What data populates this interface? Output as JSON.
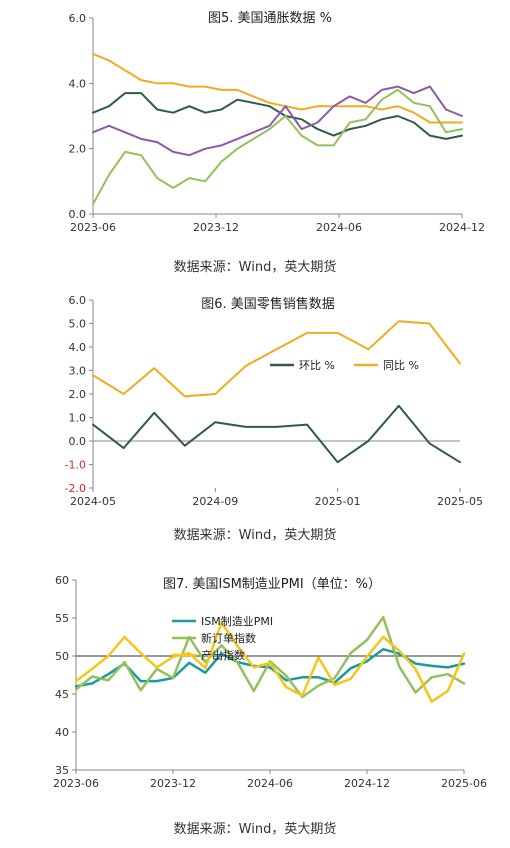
{
  "chart_data": [
    {
      "type": "line",
      "title": "图5. 美国通胀数据 %",
      "x_tick_labels": [
        "2023-06",
        "2023-12",
        "2024-06",
        "2024-12"
      ],
      "ylim": [
        0,
        6
      ],
      "y_ticks": [
        "0.0",
        "2.0",
        "4.0",
        "6.0"
      ],
      "grid": false,
      "series": [
        {
          "color": "#f0ab1e",
          "values": [
            4.9,
            4.7,
            4.4,
            4.1,
            4.0,
            4.0,
            3.9,
            3.9,
            3.8,
            3.8,
            3.6,
            3.4,
            3.3,
            3.2,
            3.3,
            3.3,
            3.3,
            3.3,
            3.2,
            3.3,
            3.1,
            2.8,
            2.8,
            2.8
          ]
        },
        {
          "color": "#2e5c46",
          "values": [
            3.1,
            3.3,
            3.7,
            3.7,
            3.2,
            3.1,
            3.3,
            3.1,
            3.2,
            3.5,
            3.4,
            3.3,
            3.0,
            2.9,
            2.6,
            2.4,
            2.6,
            2.7,
            2.9,
            3.0,
            2.8,
            2.4,
            2.3,
            2.4
          ]
        },
        {
          "color": "#8d5aa8",
          "values": [
            2.5,
            2.7,
            2.5,
            2.3,
            2.2,
            1.9,
            1.8,
            2.0,
            2.1,
            2.3,
            2.5,
            2.7,
            3.3,
            2.6,
            2.8,
            3.3,
            3.6,
            3.4,
            3.8,
            3.9,
            3.7,
            3.9,
            3.2,
            3.0
          ]
        },
        {
          "color": "#92c15a",
          "values": [
            0.3,
            1.2,
            1.9,
            1.8,
            1.1,
            0.8,
            1.1,
            1.0,
            1.6,
            2.0,
            2.3,
            2.6,
            3.0,
            2.4,
            2.1,
            2.1,
            2.8,
            2.9,
            3.5,
            3.8,
            3.4,
            3.3,
            2.5,
            2.6
          ]
        }
      ],
      "source": "数据来源：Wind，英大期货"
    },
    {
      "type": "line",
      "title": "图6. 美国零售销售数据",
      "x_tick_labels": [
        "2024-05",
        "2024-09",
        "2025-01",
        "2025-05"
      ],
      "ylim": [
        -2,
        6
      ],
      "y_ticks": [
        "-2.0",
        "-1.0",
        "0.0",
        "1.0",
        "2.0",
        "3.0",
        "4.0",
        "5.0",
        "6.0"
      ],
      "legend_position": "center-right",
      "series": [
        {
          "name": "环比 %",
          "color": "#2e5c46",
          "values": [
            0.7,
            -0.3,
            1.2,
            -0.2,
            0.8,
            0.6,
            0.6,
            0.7,
            -0.9,
            0.0,
            1.5,
            -0.1,
            -0.9
          ]
        },
        {
          "name": "同比 %",
          "color": "#f0ab1e",
          "values": [
            2.8,
            2.0,
            3.1,
            1.9,
            2.0,
            3.2,
            3.9,
            4.6,
            4.6,
            3.9,
            5.1,
            5.0,
            3.3
          ]
        }
      ],
      "source": "数据来源：Wind，英大期货"
    },
    {
      "type": "line",
      "title": "图7. 美国ISM制造业PMI（单位：%）",
      "x_tick_labels": [
        "2023-06",
        "2023-12",
        "2024-06",
        "2024-12",
        "2025-06"
      ],
      "ylim": [
        35,
        60
      ],
      "y_ticks": [
        "35",
        "40",
        "45",
        "50",
        "55",
        "60"
      ],
      "reference_line": 50,
      "legend_position": "top-left",
      "series": [
        {
          "name": "ISM制造业PMI",
          "color": "#1a9ba1",
          "values": [
            46.0,
            46.4,
            47.6,
            49.0,
            46.7,
            46.7,
            47.1,
            49.1,
            47.8,
            50.3,
            49.2,
            48.7,
            48.5,
            46.8,
            47.2,
            47.2,
            46.5,
            48.4,
            49.3,
            50.9,
            50.3,
            49.0,
            48.7,
            48.5,
            49.0
          ]
        },
        {
          "name": "新订单指数",
          "color": "#92c15a",
          "values": [
            45.6,
            47.3,
            46.8,
            49.2,
            45.5,
            48.3,
            47.1,
            52.5,
            49.2,
            51.4,
            49.1,
            45.4,
            49.3,
            47.4,
            44.6,
            46.1,
            47.1,
            50.4,
            52.1,
            55.1,
            48.6,
            45.2,
            47.2,
            47.6,
            46.4
          ]
        },
        {
          "name": "产出指数",
          "color": "#f5c518",
          "values": [
            46.7,
            48.3,
            50.0,
            52.5,
            50.4,
            48.5,
            49.9,
            50.4,
            48.4,
            54.4,
            51.3,
            48.5,
            49.1,
            45.9,
            44.8,
            49.8,
            46.2,
            47.0,
            49.9,
            52.5,
            50.7,
            48.3,
            44.0,
            45.4,
            50.3
          ]
        }
      ],
      "source": "数据来源：Wind，英大期货"
    }
  ]
}
